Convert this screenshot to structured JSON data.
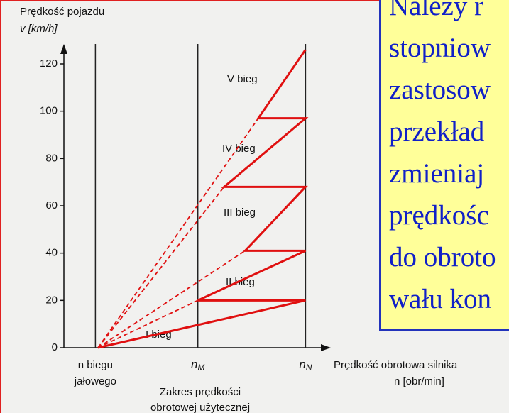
{
  "chart_data": {
    "type": "line",
    "ylabel": [
      "Prędkość pojazdu",
      "v [km/h]"
    ],
    "xlabel": [
      "Prędkość obrotowa silnika",
      "n [obr/min]"
    ],
    "xlim": [
      0,
      100
    ],
    "ylim": [
      0,
      126
    ],
    "yticks": [
      0,
      20,
      40,
      60,
      80,
      100,
      120
    ],
    "xticks": [
      {
        "value": 12,
        "label": [
          "n biegu",
          "jałowego"
        ]
      },
      {
        "value": 51,
        "label": "n",
        "sub": "M"
      },
      {
        "value": 92,
        "label": "n",
        "sub": "N"
      }
    ],
    "color": "#e01010",
    "x": [
      13,
      92,
      51,
      92,
      69,
      92,
      61,
      92,
      74,
      92
    ],
    "values": [
      0,
      20,
      20,
      41,
      41,
      68,
      68,
      97,
      97,
      126
    ],
    "dashed": [
      {
        "x": [
          13,
          51
        ],
        "values": [
          0,
          20
        ]
      },
      {
        "x": [
          13,
          69
        ],
        "values": [
          0,
          41
        ]
      },
      {
        "x": [
          13,
          61
        ],
        "values": [
          0,
          68
        ]
      },
      {
        "x": [
          13,
          74
        ],
        "values": [
          0,
          97
        ]
      }
    ],
    "gear_labels": [
      "I bieg",
      "II bieg",
      "III bieg",
      "IV bieg",
      "V bieg"
    ],
    "range_caption": [
      "Zakres prędkości",
      "obrotowej użytecznej"
    ]
  },
  "text_box": {
    "lines": [
      "Należy r",
      "stopniow",
      "zastosow",
      "przekład",
      "zmieniaj",
      "prędkośc",
      "do obroto",
      "wału kon"
    ]
  }
}
